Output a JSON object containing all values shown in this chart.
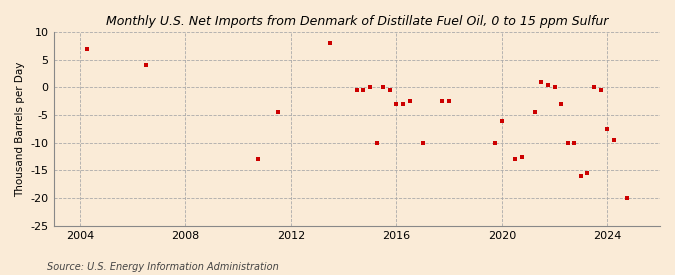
{
  "title": "Monthly U.S. Net Imports from Denmark of Distillate Fuel Oil, 0 to 15 ppm Sulfur",
  "ylabel": "Thousand Barrels per Day",
  "source": "Source: U.S. Energy Information Administration",
  "background_color": "#faebd7",
  "plot_bg_color": "#faebd7",
  "marker_color": "#cc0000",
  "xlim": [
    2003.0,
    2026.0
  ],
  "ylim": [
    -25,
    10
  ],
  "yticks": [
    -25,
    -20,
    -15,
    -10,
    -5,
    0,
    5,
    10
  ],
  "xticks": [
    2004,
    2008,
    2012,
    2016,
    2020,
    2024
  ],
  "points": [
    [
      2004.25,
      7.0
    ],
    [
      2006.5,
      4.0
    ],
    [
      2010.75,
      -13.0
    ],
    [
      2011.5,
      -4.5
    ],
    [
      2013.5,
      8.0
    ],
    [
      2014.5,
      -0.5
    ],
    [
      2014.75,
      -0.5
    ],
    [
      2015.0,
      0.0
    ],
    [
      2015.25,
      -10.0
    ],
    [
      2015.5,
      0.0
    ],
    [
      2015.75,
      -0.5
    ],
    [
      2016.0,
      -3.0
    ],
    [
      2016.25,
      -3.0
    ],
    [
      2016.5,
      -2.5
    ],
    [
      2017.0,
      -10.0
    ],
    [
      2017.75,
      -2.5
    ],
    [
      2018.0,
      -2.5
    ],
    [
      2019.75,
      -10.0
    ],
    [
      2020.0,
      -6.0
    ],
    [
      2020.5,
      -13.0
    ],
    [
      2020.75,
      -12.5
    ],
    [
      2021.25,
      -4.5
    ],
    [
      2021.5,
      1.0
    ],
    [
      2021.75,
      0.5
    ],
    [
      2022.0,
      0.0
    ],
    [
      2022.25,
      -3.0
    ],
    [
      2022.5,
      -10.0
    ],
    [
      2022.75,
      -10.0
    ],
    [
      2023.0,
      -16.0
    ],
    [
      2023.25,
      -15.5
    ],
    [
      2023.5,
      0.0
    ],
    [
      2023.75,
      -0.5
    ],
    [
      2024.0,
      -7.5
    ],
    [
      2024.25,
      -9.5
    ],
    [
      2024.75,
      -20.0
    ]
  ]
}
